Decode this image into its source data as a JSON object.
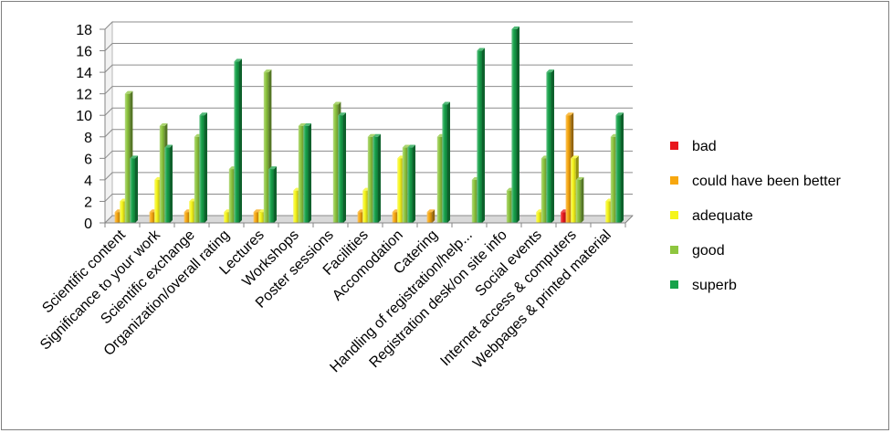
{
  "chart_data": {
    "type": "bar",
    "title": "",
    "xlabel": "",
    "ylabel": "",
    "ylim": [
      0,
      18
    ],
    "yticks": [
      0,
      2,
      4,
      6,
      8,
      10,
      12,
      14,
      16,
      18
    ],
    "grid": true,
    "legend_position": "right",
    "categories": [
      "Scientific content",
      "Significance to your work",
      "Scientific exchange",
      "Organization/overall rating",
      "Lectures",
      "Workshops",
      "Poster sessions",
      "Facilities",
      "Accomodation",
      "Catering",
      "Handling of registration/help...",
      "Registration desk/on site info",
      "Social events",
      "Internet access & computers",
      "Webpages & printed material"
    ],
    "series": [
      {
        "name": "bad",
        "color": "#e8171c",
        "values": [
          0,
          0,
          0,
          0,
          0,
          0,
          0,
          0,
          0,
          0,
          0,
          0,
          0,
          1,
          0
        ]
      },
      {
        "name": "could have been better",
        "color": "#f7a70f",
        "values": [
          1,
          1,
          1,
          0,
          1,
          0,
          0,
          1,
          1,
          1,
          0,
          0,
          0,
          10,
          0
        ]
      },
      {
        "name": "adequate",
        "color": "#f5f51a",
        "values": [
          2,
          4,
          2,
          1,
          1,
          3,
          0,
          3,
          6,
          0,
          0,
          0,
          1,
          6,
          2
        ]
      },
      {
        "name": "good",
        "color": "#8ec63f",
        "values": [
          12,
          9,
          8,
          5,
          14,
          9,
          11,
          8,
          7,
          8,
          4,
          3,
          6,
          4,
          8
        ]
      },
      {
        "name": "superb",
        "color": "#17a24a",
        "values": [
          6,
          7,
          10,
          15,
          5,
          9,
          10,
          8,
          7,
          11,
          16,
          18,
          14,
          0,
          10
        ]
      }
    ]
  }
}
